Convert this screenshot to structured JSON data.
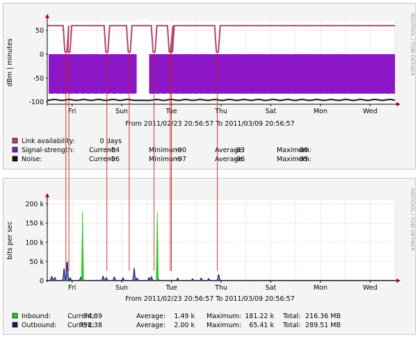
{
  "colors": {
    "link": "#b0456e",
    "signal": "#8a16c8",
    "noise": "#111111",
    "inbound": "#22cc22",
    "outbound": "#1b1b70",
    "grid": "#ff8080",
    "marker": "#cc2020"
  },
  "watermark": "RRDTOOL / TOBI OETIKER",
  "chart_data": [
    {
      "type": "line",
      "ylabel": "dBm | minutes",
      "ylim": [
        -105,
        70
      ],
      "yticks": [
        {
          "v": 50,
          "label": "50"
        },
        {
          "v": 0,
          "label": "0"
        },
        {
          "v": -50,
          "label": "-50"
        },
        {
          "v": -100,
          "label": "-100"
        }
      ],
      "xticks": [
        "Fri",
        "Sun",
        "Tue",
        "Thu",
        "Sat",
        "Mon",
        "Wed"
      ],
      "range": "From 2011/02/23 20:56:57 To 2011/03/09 20:56:57",
      "days": 14,
      "gap": [
        3.6,
        4.1
      ],
      "link_dips": [
        0.75,
        0.87,
        2.4,
        3.3,
        4.3,
        4.95,
        5.0,
        6.85
      ],
      "series": [
        {
          "name": "Link availability:",
          "level": 60,
          "dip_to": 5,
          "stats": [
            {
              "label": "",
              "value": "0 days"
            }
          ]
        },
        {
          "name": "Signal-strength:",
          "top": 0,
          "bottom": -83,
          "stats": [
            {
              "label": "Current:",
              "value": "-84"
            },
            {
              "label": "Minimum:",
              "value": "-90"
            },
            {
              "label": "Average:",
              "value": "-83"
            },
            {
              "label": "Maximum:",
              "value": "-80"
            }
          ]
        },
        {
          "name": "Noise:",
          "level": -96,
          "stats": [
            {
              "label": "Current:",
              "value": "-96"
            },
            {
              "label": "Minimum:",
              "value": "-97"
            },
            {
              "label": "Average:",
              "value": "-96"
            },
            {
              "label": "Maximum:",
              "value": "-95"
            }
          ]
        }
      ]
    },
    {
      "type": "area",
      "ylabel": "bits per sec",
      "ylim": [
        0,
        210000
      ],
      "yticks": [
        {
          "v": 0,
          "label": "0"
        },
        {
          "v": 50000,
          "label": "50 k"
        },
        {
          "v": 100000,
          "label": "100 k"
        },
        {
          "v": 150000,
          "label": "150 k"
        },
        {
          "v": 200000,
          "label": "200 k"
        }
      ],
      "xticks": [
        "Fri",
        "Sun",
        "Tue",
        "Thu",
        "Sat",
        "Mon",
        "Wed"
      ],
      "range": "From 2011/02/23 20:56:57 To 2011/03/09 20:56:57",
      "days": 14,
      "inbound_spikes": [
        {
          "t": 1.42,
          "v": 181000
        },
        {
          "t": 4.43,
          "v": 181000
        }
      ],
      "outbound_spikes": [
        {
          "t": 0.18,
          "v": 14000
        },
        {
          "t": 0.3,
          "v": 10000
        },
        {
          "t": 0.68,
          "v": 38000
        },
        {
          "t": 0.8,
          "v": 65000
        },
        {
          "t": 0.92,
          "v": 8000
        },
        {
          "t": 1.35,
          "v": 10000
        },
        {
          "t": 2.25,
          "v": 14000
        },
        {
          "t": 2.38,
          "v": 8000
        },
        {
          "t": 2.7,
          "v": 12000
        },
        {
          "t": 3.05,
          "v": 8000
        },
        {
          "t": 3.5,
          "v": 33000
        },
        {
          "t": 3.62,
          "v": 8000
        },
        {
          "t": 4.1,
          "v": 10000
        },
        {
          "t": 4.2,
          "v": 10000
        },
        {
          "t": 4.45,
          "v": 8000
        },
        {
          "t": 5.25,
          "v": 8000
        },
        {
          "t": 5.85,
          "v": 5000
        },
        {
          "t": 6.2,
          "v": 8000
        },
        {
          "t": 6.5,
          "v": 6000
        },
        {
          "t": 6.9,
          "v": 20000
        }
      ],
      "series": [
        {
          "name": "Inbound:",
          "stats": [
            {
              "label": "Current:",
              "value": "74.89"
            },
            {
              "label": "Average:",
              "value": "1.49 k"
            },
            {
              "label": "Maximum:",
              "value": "181.22 k"
            },
            {
              "label": "Total:",
              "value": "216.36 MB"
            }
          ]
        },
        {
          "name": "Outbound:",
          "stats": [
            {
              "label": "Current:",
              "value": "751.38"
            },
            {
              "label": "Average:",
              "value": "2.00 k"
            },
            {
              "label": "Maximum:",
              "value": "65.41 k"
            },
            {
              "label": "Total:",
              "value": "289.51 MB"
            }
          ]
        }
      ]
    }
  ]
}
